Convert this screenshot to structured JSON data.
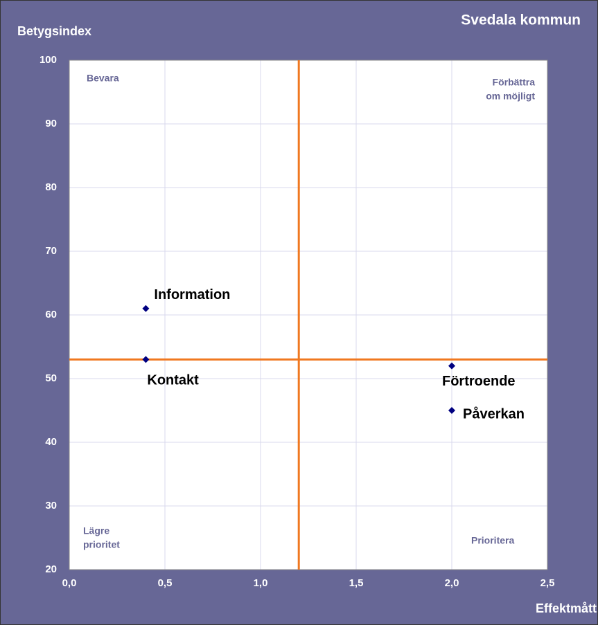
{
  "chart_data": {
    "type": "scatter",
    "title": "Svedala kommun",
    "ylabel": "Betygsindex",
    "xlabel": "Effektmått",
    "points": [
      {
        "label": "Information",
        "x": 0.4,
        "y": 61
      },
      {
        "label": "Kontakt",
        "x": 0.4,
        "y": 53
      },
      {
        "label": "Förtroende",
        "x": 2.0,
        "y": 52
      },
      {
        "label": "Påverkan",
        "x": 2.0,
        "y": 45
      }
    ],
    "color": "#000080",
    "reference_lines": {
      "x": 1.2,
      "y": 53,
      "color": "#f07820"
    },
    "quadrant_labels": [
      {
        "lines": [
          "Bevara"
        ],
        "corner": "top-left"
      },
      {
        "lines": [
          "Förbättra",
          "om möjligt"
        ],
        "corner": "top-right"
      },
      {
        "lines": [
          "Lägre",
          "prioritet"
        ],
        "corner": "bottom-left"
      },
      {
        "lines": [
          "Prioritera"
        ],
        "corner": "bottom-right"
      }
    ],
    "xlim": [
      0,
      2.5
    ],
    "xticks": [
      {
        "value": 0,
        "label": "0,0"
      },
      {
        "value": 0.5,
        "label": "0,5"
      },
      {
        "value": 1,
        "label": "1,0"
      },
      {
        "value": 1.5,
        "label": "1,5"
      },
      {
        "value": 2,
        "label": "2,0"
      },
      {
        "value": 2.5,
        "label": "2,5"
      }
    ],
    "ylim": [
      20,
      100
    ],
    "yticks": [
      20,
      30,
      40,
      50,
      60,
      70,
      80,
      90,
      100
    ],
    "grid": true
  }
}
